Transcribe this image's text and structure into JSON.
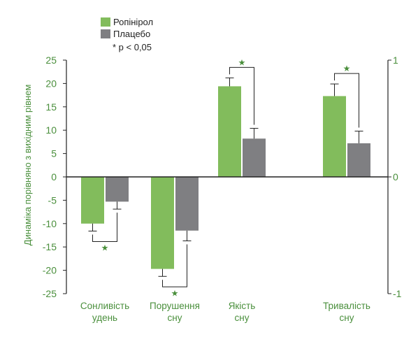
{
  "chart_data": {
    "type": "bar",
    "ylabel": "Динаміка порівняно з вихідним рівнем",
    "ylim": [
      -25,
      25
    ],
    "yticks": [
      25,
      20,
      15,
      10,
      5,
      0,
      -5,
      -10,
      -15,
      -20,
      -25
    ],
    "ytick_labels": [
      "25",
      "20",
      "15",
      "10",
      "5",
      "0",
      "-5",
      "-10",
      "-15",
      "-20",
      "-25"
    ],
    "y2lim": [
      -1,
      1
    ],
    "y2ticks": [
      1,
      0,
      -1
    ],
    "y2tick_labels": [
      "1",
      "0",
      "-1"
    ],
    "categories": [
      [
        "Сонливість",
        "удень"
      ],
      [
        "Порушення",
        "сну"
      ],
      [
        "Якість",
        "сну"
      ],
      [
        "Тривалість",
        "сну"
      ]
    ],
    "series": [
      {
        "name": "Ропінірол",
        "color": "#82bc5c",
        "values": [
          -10,
          -19.7,
          19.4,
          17.3
        ],
        "errors": [
          1.6,
          1.6,
          1.8,
          2.6
        ]
      },
      {
        "name": "Плацебо",
        "color": "#7f7f82",
        "values": [
          -5.3,
          -11.5,
          8.2,
          7.2
        ],
        "errors": [
          1.6,
          2.2,
          2.2,
          2.6
        ]
      }
    ],
    "legend_note": "* p < 0,05",
    "significance_mark": "★",
    "significant": [
      true,
      true,
      true,
      true
    ],
    "accent_color": "#4a8f3c",
    "axis_color": "#222222"
  }
}
